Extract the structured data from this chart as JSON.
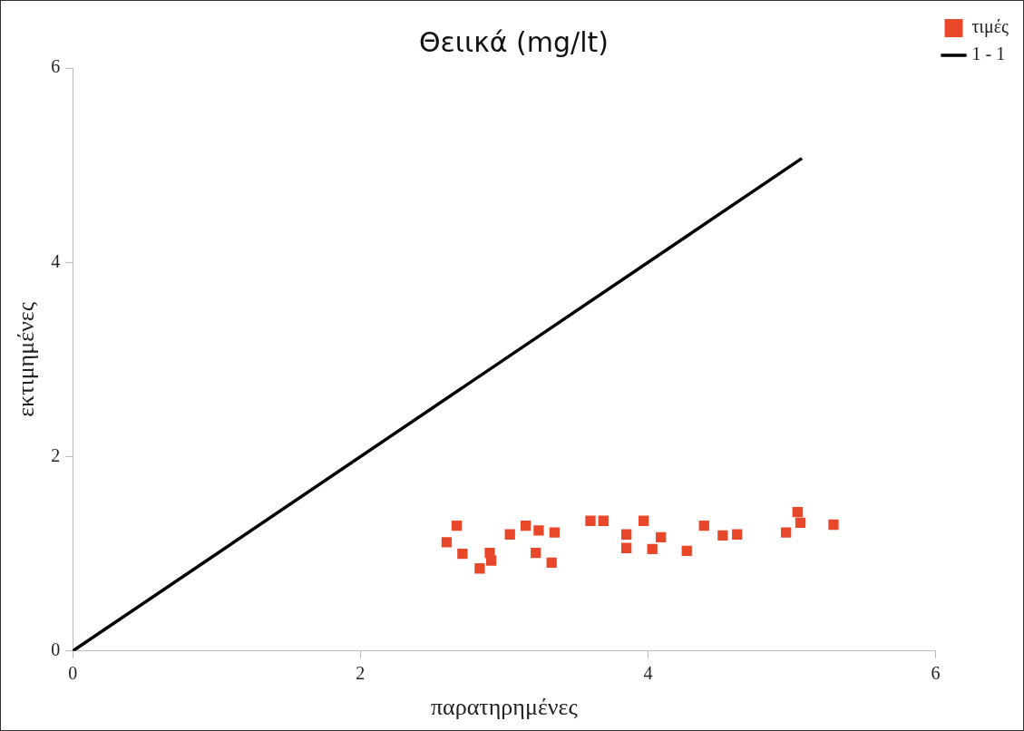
{
  "chart_data": {
    "type": "scatter",
    "title": "Θειικά (mg/lt)",
    "xlabel": "παρατηρημένες",
    "ylabel": "εκτιμημένες",
    "xlim": [
      0,
      6
    ],
    "ylim": [
      0,
      6
    ],
    "xticks": [
      0,
      2,
      4,
      6
    ],
    "yticks": [
      0,
      2,
      4,
      6
    ],
    "grid": false,
    "legend": "top right",
    "series": [
      {
        "name": "τιμές",
        "marker": "square",
        "color": "#e8472a",
        "x": [
          2.6,
          2.67,
          2.71,
          2.83,
          2.91,
          2.9,
          3.04,
          3.15,
          3.24,
          3.35,
          3.22,
          3.33,
          3.6,
          3.69,
          3.85,
          3.85,
          3.97,
          4.09,
          4.03,
          4.27,
          4.39,
          4.52,
          4.62,
          4.96,
          5.04,
          5.06,
          5.29
        ],
        "values": [
          1.12,
          1.29,
          1.0,
          0.85,
          0.93,
          1.01,
          1.2,
          1.29,
          1.24,
          1.22,
          1.01,
          0.91,
          1.34,
          1.34,
          1.2,
          1.06,
          1.34,
          1.17,
          1.05,
          1.03,
          1.29,
          1.19,
          1.2,
          1.22,
          1.43,
          1.32,
          1.3
        ]
      },
      {
        "name": "1 - 1",
        "type": "line",
        "color": "#000000",
        "x": [
          0,
          5.07
        ],
        "values": [
          0,
          5.07
        ],
        "line_style": "solid"
      }
    ]
  }
}
